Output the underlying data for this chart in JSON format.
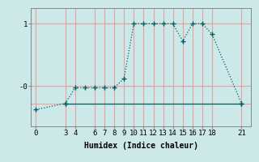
{
  "xlabel": "Humidex (Indice chaleur)",
  "background_color": "#cce8e8",
  "grid_color": "#e8a0a0",
  "line_color": "#006060",
  "marker": "+",
  "line_style": "dotted",
  "series1_x": [
    0,
    3,
    4,
    5,
    6,
    7,
    8,
    9,
    10,
    11,
    12,
    13,
    14,
    15,
    16,
    17,
    18,
    21
  ],
  "series1_y": [
    -0.38,
    -0.28,
    -0.03,
    -0.03,
    -0.03,
    -0.03,
    -0.03,
    0.12,
    1.0,
    1.0,
    1.0,
    1.0,
    1.0,
    0.72,
    1.0,
    1.0,
    0.83,
    -0.28
  ],
  "series2_x": [
    3,
    21
  ],
  "series2_y": [
    -0.28,
    -0.28
  ],
  "xlim": [
    -0.5,
    22
  ],
  "ylim": [
    -0.65,
    1.25
  ],
  "yticks": [
    0.0,
    1.0
  ],
  "ytick_labels": [
    "-0",
    "1"
  ],
  "xticks": [
    0,
    3,
    4,
    6,
    7,
    8,
    9,
    10,
    11,
    12,
    13,
    14,
    15,
    16,
    17,
    18,
    21
  ],
  "tick_fontsize": 6.5,
  "xlabel_fontsize": 7
}
